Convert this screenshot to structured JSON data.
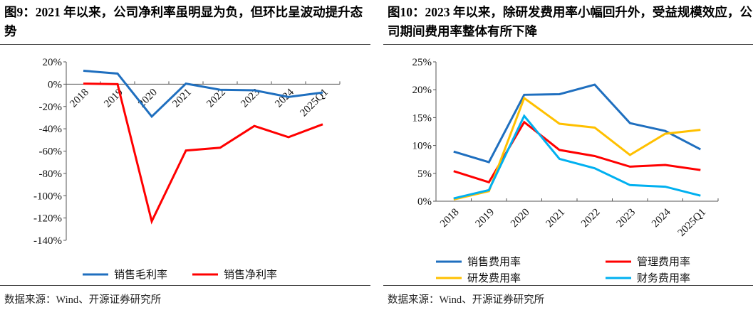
{
  "chart_data": [
    {
      "type": "line",
      "title": "图9：2021 年以来，公司净利率虽明显为负，但环比呈波动提升态势",
      "categories": [
        "2018",
        "2019",
        "2020",
        "2021",
        "2022",
        "2023",
        "2024",
        "2025Q1"
      ],
      "ylim": [
        -140,
        20
      ],
      "yticks": [
        "20%",
        "0%",
        "-20%",
        "-40%",
        "-60%",
        "-80%",
        "-100%",
        "-120%",
        "-140%"
      ],
      "ytick_values": [
        20,
        0,
        -20,
        -40,
        -60,
        -80,
        -100,
        -120,
        -140
      ],
      "grid": false,
      "legend_position": "bottom",
      "series": [
        {
          "name": "销售毛利率",
          "color": "#1F6FBF",
          "values": [
            12,
            9.5,
            -29,
            0.5,
            -5,
            -5.5,
            -11.5,
            -7.5
          ]
        },
        {
          "name": "销售净利率",
          "color": "#FF0000",
          "values": [
            0.5,
            0,
            -123,
            -59.5,
            -57,
            -37.5,
            -47.5,
            -36
          ]
        }
      ],
      "source": "数据来源：Wind、开源证券研究所"
    },
    {
      "type": "line",
      "title": "图10：2023 年以来，除研发费用率小幅回升外，受益规模效应，公司期间费用率整体有所下降",
      "categories": [
        "2018",
        "2019",
        "2020",
        "2021",
        "2022",
        "2023",
        "2024",
        "2025Q1"
      ],
      "ylim": [
        0,
        25
      ],
      "yticks": [
        "25%",
        "20%",
        "15%",
        "10%",
        "5%",
        "0%"
      ],
      "ytick_values": [
        25,
        20,
        15,
        10,
        5,
        0
      ],
      "grid": false,
      "legend_position": "bottom",
      "series": [
        {
          "name": "销售费用率",
          "color": "#1F6FBF",
          "values": [
            8.9,
            7.0,
            19.1,
            19.2,
            20.9,
            14.0,
            12.6,
            9.3
          ]
        },
        {
          "name": "管理费用率",
          "color": "#FF0000",
          "values": [
            5.4,
            3.4,
            14.2,
            9.2,
            8.1,
            6.2,
            6.5,
            5.6
          ]
        },
        {
          "name": "研发费用率",
          "color": "#FFC000",
          "values": [
            0.3,
            1.8,
            18.5,
            13.9,
            13.2,
            8.3,
            12.1,
            12.8
          ]
        },
        {
          "name": "财务费用率",
          "color": "#00B0F0",
          "values": [
            0.5,
            2.0,
            15.3,
            7.6,
            5.9,
            2.9,
            2.6,
            1.0
          ]
        }
      ],
      "source": "数据来源：Wind、开源证券研究所"
    }
  ]
}
